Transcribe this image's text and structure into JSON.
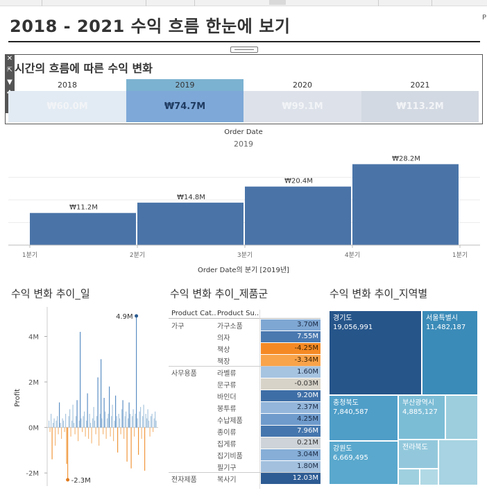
{
  "page": {
    "title": "2018 - 2021 수익 흐름 한눈에 보기",
    "corner_label": "P"
  },
  "toolbar_icons": [
    "close-icon",
    "popout-icon",
    "filter-icon",
    "pin-icon",
    "dropdown-icon"
  ],
  "year_view": {
    "title": "시간의 흐름에 따른 수익 변화",
    "years": [
      {
        "label": "2018",
        "value": "₩60.0M",
        "selected": false
      },
      {
        "label": "2019",
        "value": "₩74.7M",
        "selected": true
      },
      {
        "label": "2020",
        "value": "₩99.1M",
        "selected": false
      },
      {
        "label": "2021",
        "value": "₩113.2M",
        "selected": false
      }
    ]
  },
  "quarter_chart": {
    "header_label": "Order Date",
    "header_sub": "2019",
    "xlabel": "Order Date의 분기 [2019년]",
    "chart_data": {
      "type": "bar",
      "categories": [
        "1분기",
        "2분기",
        "3분기",
        "4분기"
      ],
      "values": [
        11.2,
        14.8,
        20.4,
        28.2
      ],
      "labels": [
        "₩11.2M",
        "₩14.8M",
        "₩20.4M",
        "₩28.2M"
      ],
      "tick_labels": [
        "1분기",
        "2분기",
        "3분기",
        "4분기",
        "1분기"
      ],
      "ylim": [
        0,
        30
      ],
      "color": "#4a74a8"
    }
  },
  "daily_chart": {
    "title": "수익 변화 추이_일",
    "ylabel": "Profit",
    "yticks": [
      "4M",
      "2M",
      "0M",
      "-2M"
    ],
    "max_label": "4.9M",
    "min_label": "-2.3M",
    "chart_data": {
      "type": "bar",
      "ylim": [
        -2.3,
        4.9
      ],
      "values": [
        0.3,
        -0.2,
        0.6,
        -1.4,
        0.2,
        0.4,
        -0.8,
        0.3,
        0.5,
        -0.3,
        1.1,
        0.2,
        -0.5,
        0.4,
        0.3,
        -0.2,
        0.6,
        -1.6,
        -2.3,
        0.5,
        0.8,
        -0.4,
        0.3,
        1.0,
        0.2,
        -0.3,
        0.5,
        1.2,
        -0.6,
        0.3,
        4.2,
        0.4,
        -0.2,
        0.5,
        0.7,
        -0.4,
        0.3,
        1.5,
        -0.5,
        0.6,
        0.2,
        -0.7,
        0.4,
        0.9,
        0.3,
        -0.3,
        0.5,
        2.2,
        -0.8,
        0.6,
        3.0,
        0.4,
        -0.3,
        1.3,
        0.7,
        -0.5,
        0.4,
        0.6,
        1.8,
        -0.4,
        0.5,
        1.0,
        -0.6,
        0.3,
        1.4,
        0.5,
        -1.1,
        0.6,
        0.4,
        -0.3,
        0.8,
        1.2,
        -0.5,
        0.5,
        0.7,
        -1.5,
        0.4,
        1.1,
        0.6,
        -1.8,
        0.5,
        0.8,
        -0.4,
        0.6,
        4.9,
        0.4,
        -1.2,
        0.7,
        0.9,
        -0.5,
        0.5,
        1.0,
        -1.9,
        0.6,
        0.4,
        0.8,
        0.3,
        -0.4,
        0.5,
        0.6,
        -0.2,
        0.4,
        0.7,
        0.3
      ]
    }
  },
  "category_table": {
    "title": "수익 변화 추이_제품군",
    "headers": [
      "Product Cat..",
      "Product Su.."
    ],
    "rows": [
      {
        "category": "가구",
        "sub": "가구소품",
        "value": "3.70M",
        "color": "#7fa7d3",
        "text": "#1a2a44"
      },
      {
        "category": "",
        "sub": "의자",
        "value": "7.55M",
        "color": "#4a79b0",
        "text": "#ffffff"
      },
      {
        "category": "",
        "sub": "책상",
        "value": "-4.25M",
        "color": "#f58a25",
        "text": "#3a2000"
      },
      {
        "category": "",
        "sub": "책장",
        "value": "-3.34M",
        "color": "#f9a34a",
        "text": "#3a2000"
      },
      {
        "category": "사무용품",
        "sub": "라벨류",
        "value": "1.60M",
        "color": "#a6c3e0",
        "text": "#1a2a44"
      },
      {
        "category": "",
        "sub": "문구류",
        "value": "-0.03M",
        "color": "#d8d3c8",
        "text": "#333333"
      },
      {
        "category": "",
        "sub": "바인더",
        "value": "9.20M",
        "color": "#3e6ea6",
        "text": "#ffffff"
      },
      {
        "category": "",
        "sub": "봉투류",
        "value": "2.37M",
        "color": "#93b6da",
        "text": "#1a2a44"
      },
      {
        "category": "",
        "sub": "수납제품",
        "value": "4.25M",
        "color": "#6f9bcc",
        "text": "#1a2a44"
      },
      {
        "category": "",
        "sub": "종이류",
        "value": "7.96M",
        "color": "#4576ad",
        "text": "#ffffff"
      },
      {
        "category": "",
        "sub": "집게류",
        "value": "0.21M",
        "color": "#cdd3d8",
        "text": "#333333"
      },
      {
        "category": "",
        "sub": "집기비품",
        "value": "3.04M",
        "color": "#86aed7",
        "text": "#1a2a44"
      },
      {
        "category": "",
        "sub": "필기구",
        "value": "1.80M",
        "color": "#a3c1df",
        "text": "#1a2a44"
      },
      {
        "category": "전자제품",
        "sub": "복사기",
        "value": "12.03M",
        "color": "#2d5b93",
        "text": "#ffffff"
      }
    ]
  },
  "region_treemap": {
    "title": "수익 변화 추이_지역별",
    "cells": [
      {
        "name": "경기도",
        "value": "19,056,991",
        "color": "#26558a"
      },
      {
        "name": "서울특별시",
        "value": "11,482,187",
        "color": "#3b8bb8"
      },
      {
        "name": "충청북도",
        "value": "7,840,587",
        "color": "#4f9ec8"
      },
      {
        "name": "부산광역시",
        "value": "4,885,127",
        "color": "#7cbdd6"
      },
      {
        "name": "",
        "value": "",
        "color": "#9ccede"
      },
      {
        "name": "강원도",
        "value": "6,669,495",
        "color": "#5aa8cd"
      },
      {
        "name": "전라북도",
        "value": "",
        "color": "#93c8dc"
      },
      {
        "name": "",
        "value": "",
        "color": "#a7d3e2"
      },
      {
        "name": "",
        "value": "",
        "color": "#9fd0df"
      },
      {
        "name": "",
        "value": "",
        "color": "#b1d9e5"
      }
    ]
  }
}
